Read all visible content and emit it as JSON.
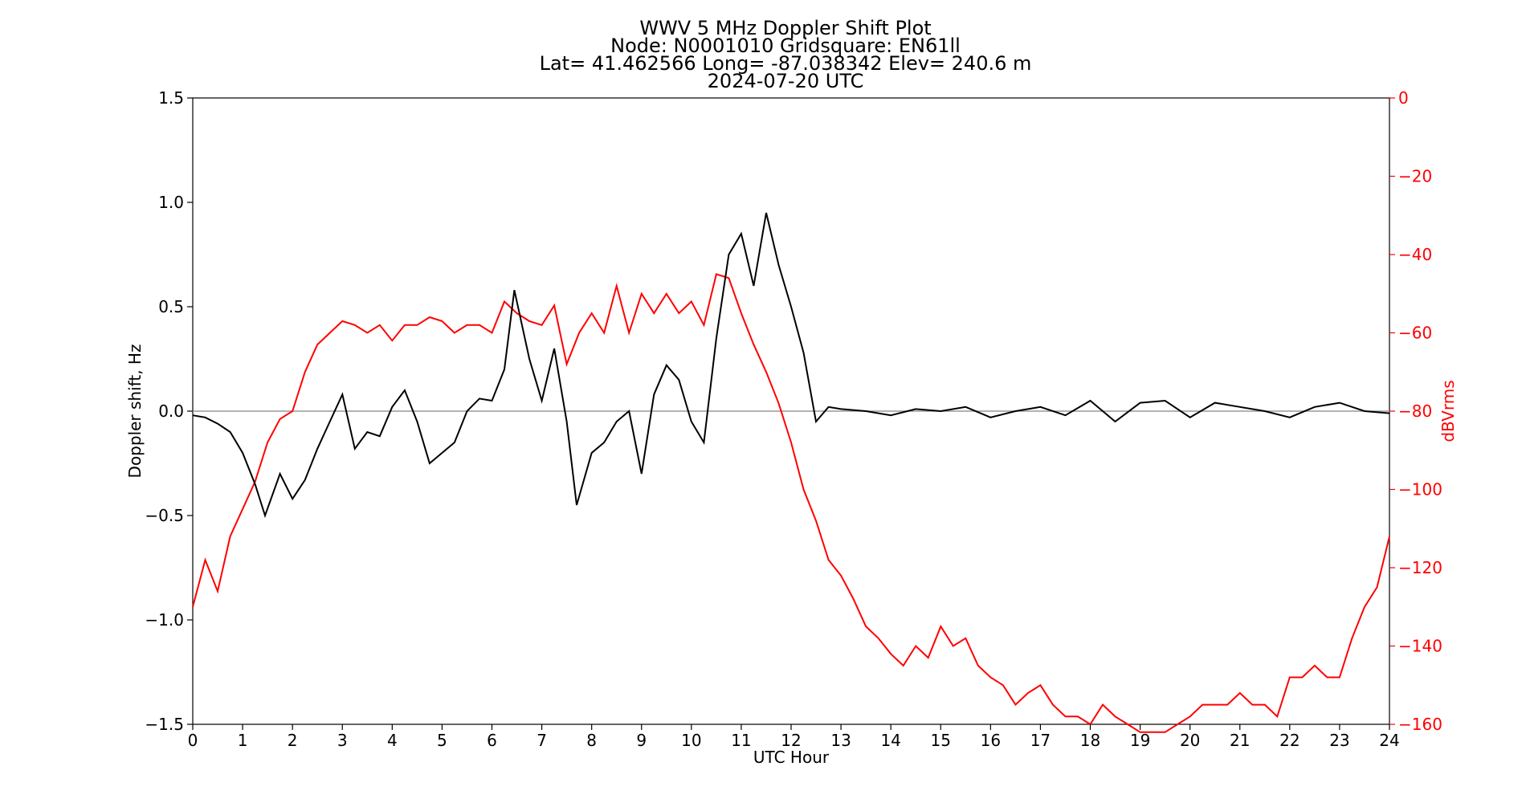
{
  "chart_data": {
    "type": "line",
    "title_lines": [
      "WWV 5 MHz Doppler Shift Plot",
      "Node:  N0001010     Gridsquare:  EN61ll",
      "Lat= 41.462566    Long= -87.038342    Elev= 240.6 m",
      "2024-07-20  UTC"
    ],
    "xlabel": "UTC Hour",
    "ylabel_left": "Doppler shift, Hz",
    "ylabel_right": "dBVrms",
    "xlim": [
      0,
      24
    ],
    "ylim_left": [
      -1.5,
      1.5
    ],
    "ylim_right": [
      -160,
      0
    ],
    "x_ticks": [
      "0",
      "1",
      "2",
      "3",
      "4",
      "5",
      "6",
      "7",
      "8",
      "9",
      "10",
      "11",
      "12",
      "13",
      "14",
      "15",
      "16",
      "17",
      "18",
      "19",
      "20",
      "21",
      "22",
      "23",
      "24"
    ],
    "y_left_ticks": [
      "1.5",
      "1.0",
      "0.5",
      "0.0",
      "−0.5",
      "−1.0",
      "−1.5"
    ],
    "y_right_ticks": [
      "0",
      "−20",
      "−40",
      "−60",
      "−80",
      "−100",
      "−120",
      "−140",
      "−160"
    ],
    "zero_line": 0.0,
    "grid": false,
    "colors": {
      "doppler": "#000000",
      "power": "#ff0000",
      "zero_line": "#999999",
      "right_axis": "#ff0000"
    },
    "series": [
      {
        "axis": "left",
        "color": "#000000",
        "x": [
          0,
          0.25,
          0.5,
          0.75,
          1.0,
          1.25,
          1.45,
          1.75,
          2.0,
          2.25,
          2.5,
          2.75,
          3.0,
          3.25,
          3.5,
          3.75,
          4.0,
          4.25,
          4.5,
          4.75,
          5.0,
          5.25,
          5.5,
          5.75,
          6.0,
          6.25,
          6.45,
          6.75,
          7.0,
          7.25,
          7.5,
          7.7,
          8.0,
          8.25,
          8.5,
          8.75,
          9.0,
          9.25,
          9.5,
          9.75,
          10.0,
          10.25,
          10.5,
          10.75,
          11.0,
          11.25,
          11.5,
          11.75,
          12.0,
          12.25,
          12.5,
          12.75,
          13.0,
          13.5,
          14.0,
          14.5,
          15.0,
          15.5,
          16.0,
          16.5,
          17.0,
          17.5,
          18.0,
          18.5,
          19.0,
          19.5,
          20.0,
          20.5,
          21.0,
          21.5,
          22.0,
          22.5,
          23.0,
          23.5,
          24.0
        ],
        "y": [
          -0.02,
          -0.03,
          -0.06,
          -0.1,
          -0.2,
          -0.35,
          -0.5,
          -0.3,
          -0.42,
          -0.33,
          -0.18,
          -0.05,
          0.08,
          -0.18,
          -0.1,
          -0.12,
          0.02,
          0.1,
          -0.05,
          -0.25,
          -0.2,
          -0.15,
          0.0,
          0.06,
          0.05,
          0.2,
          0.58,
          0.25,
          0.05,
          0.3,
          -0.05,
          -0.45,
          -0.2,
          -0.15,
          -0.05,
          0.0,
          -0.3,
          0.08,
          0.22,
          0.15,
          -0.05,
          -0.15,
          0.35,
          0.75,
          0.85,
          0.6,
          0.95,
          0.7,
          0.5,
          0.28,
          -0.05,
          0.02,
          0.01,
          0.0,
          -0.02,
          0.01,
          0.0,
          0.02,
          -0.03,
          0.0,
          0.02,
          -0.02,
          0.05,
          -0.05,
          0.04,
          0.05,
          -0.03,
          0.04,
          0.02,
          0.0,
          -0.03,
          0.02,
          0.04,
          0.0,
          -0.01
        ]
      },
      {
        "axis": "right",
        "color": "#ff0000",
        "x": [
          0,
          0.25,
          0.5,
          0.75,
          1.0,
          1.25,
          1.5,
          1.75,
          2.0,
          2.25,
          2.5,
          2.75,
          3.0,
          3.25,
          3.5,
          3.75,
          4.0,
          4.25,
          4.5,
          4.75,
          5.0,
          5.25,
          5.5,
          5.75,
          6.0,
          6.25,
          6.5,
          6.75,
          7.0,
          7.25,
          7.5,
          7.75,
          8.0,
          8.25,
          8.5,
          8.75,
          9.0,
          9.25,
          9.5,
          9.75,
          10.0,
          10.25,
          10.5,
          10.75,
          11.0,
          11.25,
          11.5,
          11.75,
          12.0,
          12.25,
          12.5,
          12.75,
          13.0,
          13.25,
          13.5,
          13.75,
          14.0,
          14.25,
          14.5,
          14.75,
          15.0,
          15.25,
          15.5,
          15.75,
          16.0,
          16.25,
          16.5,
          16.75,
          17.0,
          17.25,
          17.5,
          17.75,
          18.0,
          18.25,
          18.5,
          18.75,
          19.0,
          19.25,
          19.5,
          19.75,
          20.0,
          20.25,
          20.5,
          20.75,
          21.0,
          21.25,
          21.5,
          21.75,
          22.0,
          22.25,
          22.5,
          22.75,
          23.0,
          23.25,
          23.5,
          23.75,
          24.0
        ],
        "y": [
          -130,
          -118,
          -126,
          -112,
          -105,
          -98,
          -88,
          -82,
          -80,
          -70,
          -63,
          -60,
          -57,
          -58,
          -60,
          -58,
          -62,
          -58,
          -58,
          -56,
          -57,
          -60,
          -58,
          -58,
          -60,
          -52,
          -55,
          -57,
          -58,
          -53,
          -68,
          -60,
          -55,
          -60,
          -48,
          -60,
          -50,
          -55,
          -50,
          -55,
          -52,
          -58,
          -45,
          -46,
          -55,
          -63,
          -70,
          -78,
          -88,
          -100,
          -108,
          -118,
          -122,
          -128,
          -135,
          -138,
          -142,
          -145,
          -140,
          -143,
          -135,
          -140,
          -138,
          -145,
          -148,
          -150,
          -155,
          -152,
          -150,
          -155,
          -158,
          -158,
          -160,
          -155,
          -158,
          -160,
          -162,
          -162,
          -162,
          -160,
          -158,
          -155,
          -155,
          -155,
          -152,
          -155,
          -155,
          -158,
          -148,
          -148,
          -145,
          -148,
          -148,
          -138,
          -130,
          -125,
          -112
        ]
      }
    ]
  }
}
